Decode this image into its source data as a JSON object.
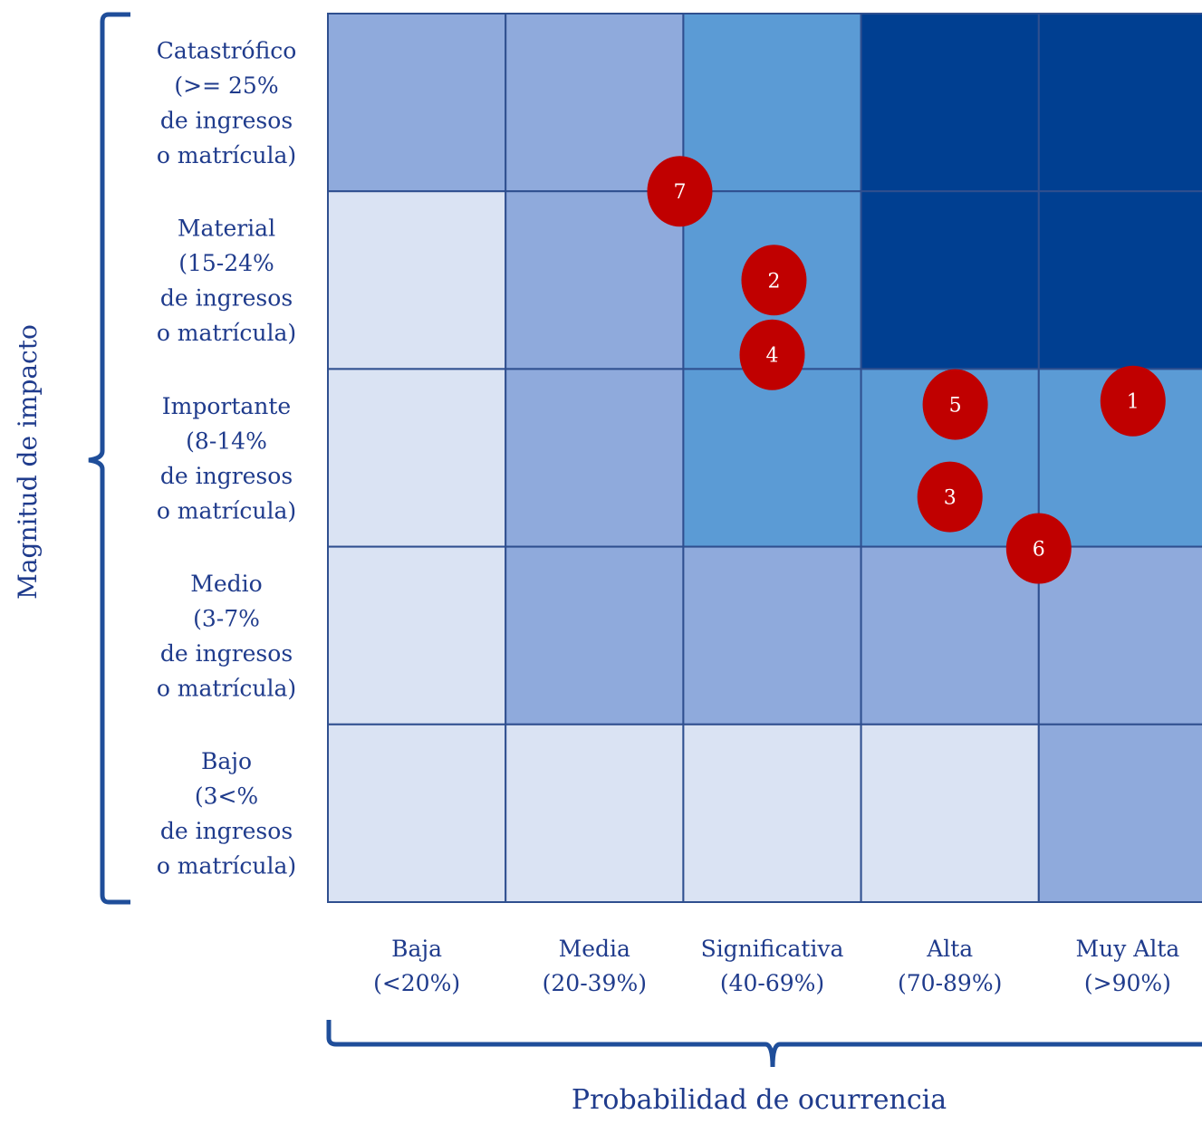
{
  "y_axis": {
    "title": "Magnitud de impacto",
    "levels": [
      {
        "lines": [
          "Catastrófico",
          "(>= 25%",
          "de ingresos",
          "o matrícula)"
        ]
      },
      {
        "lines": [
          "Material",
          "(15-24%",
          "de ingresos",
          "o matrícula)"
        ]
      },
      {
        "lines": [
          "Importante",
          "(8-14%",
          "de ingresos",
          "o matrícula)"
        ]
      },
      {
        "lines": [
          "Medio",
          "(3-7%",
          "de ingresos",
          "o matrícula)"
        ]
      },
      {
        "lines": [
          "Bajo",
          "(3<%",
          "de ingresos",
          "o matrícula)"
        ]
      }
    ]
  },
  "x_axis": {
    "title": "Probabilidad de ocurrencia",
    "levels": [
      {
        "lines": [
          "Baja",
          "(<20%)"
        ]
      },
      {
        "lines": [
          "Media",
          "(20-39%)"
        ]
      },
      {
        "lines": [
          "Significativa",
          "(40-69%)"
        ]
      },
      {
        "lines": [
          "Alta",
          "(70-89%)"
        ]
      },
      {
        "lines": [
          "Muy Alta",
          "(>90%)"
        ]
      }
    ]
  },
  "colors": {
    "low": "#dae3f3",
    "medium": "#8faadc",
    "high": "#5b9bd5",
    "critical": "#003f91",
    "grid_line": "#2f4f8f",
    "text": "#1f3b8c",
    "marker": "#c00000"
  },
  "heatmap": [
    [
      "medium",
      "medium",
      "high",
      "critical",
      "critical"
    ],
    [
      "low",
      "medium",
      "high",
      "critical",
      "critical"
    ],
    [
      "low",
      "medium",
      "high",
      "high",
      "high"
    ],
    [
      "low",
      "medium",
      "medium",
      "medium",
      "medium"
    ],
    [
      "low",
      "low",
      "low",
      "low",
      "medium"
    ]
  ],
  "risks": [
    {
      "label": "1",
      "probability_col": 4.53,
      "impact_row": 2.18
    },
    {
      "label": "2",
      "probability_col": 2.51,
      "impact_row": 1.5
    },
    {
      "label": "3",
      "probability_col": 3.5,
      "impact_row": 2.72
    },
    {
      "label": "4",
      "probability_col": 2.5,
      "impact_row": 1.92
    },
    {
      "label": "5",
      "probability_col": 3.53,
      "impact_row": 2.2
    },
    {
      "label": "6",
      "probability_col": 4.0,
      "impact_row": 3.01
    },
    {
      "label": "7",
      "probability_col": 1.98,
      "impact_row": 1.0
    }
  ]
}
